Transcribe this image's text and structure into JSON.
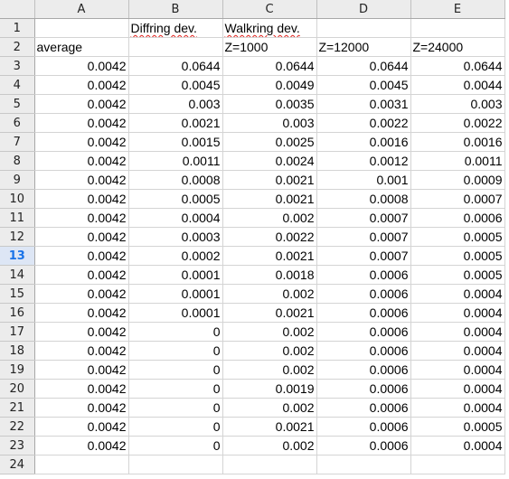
{
  "columns": [
    "A",
    "B",
    "C",
    "D",
    "E"
  ],
  "active_row": "13",
  "rows": [
    {
      "num": "1",
      "cells": [
        "",
        "Diffring dev.",
        "Walkring dev.",
        "",
        ""
      ]
    },
    {
      "num": "2",
      "cells": [
        "average",
        "",
        "Z=1000",
        "Z=12000",
        "Z=24000"
      ]
    },
    {
      "num": "3",
      "cells": [
        "0.0042",
        "0.0644",
        "0.0644",
        "0.0644",
        "0.0644"
      ]
    },
    {
      "num": "4",
      "cells": [
        "0.0042",
        "0.0045",
        "0.0049",
        "0.0045",
        "0.0044"
      ]
    },
    {
      "num": "5",
      "cells": [
        "0.0042",
        "0.003",
        "0.0035",
        "0.0031",
        "0.003"
      ]
    },
    {
      "num": "6",
      "cells": [
        "0.0042",
        "0.0021",
        "0.003",
        "0.0022",
        "0.0022"
      ]
    },
    {
      "num": "7",
      "cells": [
        "0.0042",
        "0.0015",
        "0.0025",
        "0.0016",
        "0.0016"
      ]
    },
    {
      "num": "8",
      "cells": [
        "0.0042",
        "0.0011",
        "0.0024",
        "0.0012",
        "0.0011"
      ]
    },
    {
      "num": "9",
      "cells": [
        "0.0042",
        "0.0008",
        "0.0021",
        "0.001",
        "0.0009"
      ]
    },
    {
      "num": "10",
      "cells": [
        "0.0042",
        "0.0005",
        "0.0021",
        "0.0008",
        "0.0007"
      ]
    },
    {
      "num": "11",
      "cells": [
        "0.0042",
        "0.0004",
        "0.002",
        "0.0007",
        "0.0006"
      ]
    },
    {
      "num": "12",
      "cells": [
        "0.0042",
        "0.0003",
        "0.0022",
        "0.0007",
        "0.0005"
      ]
    },
    {
      "num": "13",
      "cells": [
        "0.0042",
        "0.0002",
        "0.0021",
        "0.0007",
        "0.0005"
      ]
    },
    {
      "num": "14",
      "cells": [
        "0.0042",
        "0.0001",
        "0.0018",
        "0.0006",
        "0.0005"
      ]
    },
    {
      "num": "15",
      "cells": [
        "0.0042",
        "0.0001",
        "0.002",
        "0.0006",
        "0.0004"
      ]
    },
    {
      "num": "16",
      "cells": [
        "0.0042",
        "0.0001",
        "0.0021",
        "0.0006",
        "0.0004"
      ]
    },
    {
      "num": "17",
      "cells": [
        "0.0042",
        "0",
        "0.002",
        "0.0006",
        "0.0004"
      ]
    },
    {
      "num": "18",
      "cells": [
        "0.0042",
        "0",
        "0.002",
        "0.0006",
        "0.0004"
      ]
    },
    {
      "num": "19",
      "cells": [
        "0.0042",
        "0",
        "0.002",
        "0.0006",
        "0.0004"
      ]
    },
    {
      "num": "20",
      "cells": [
        "0.0042",
        "0",
        "0.0019",
        "0.0006",
        "0.0004"
      ]
    },
    {
      "num": "21",
      "cells": [
        "0.0042",
        "0",
        "0.002",
        "0.0006",
        "0.0004"
      ]
    },
    {
      "num": "22",
      "cells": [
        "0.0042",
        "0",
        "0.0021",
        "0.0006",
        "0.0005"
      ]
    },
    {
      "num": "23",
      "cells": [
        "0.0042",
        "0",
        "0.002",
        "0.0006",
        "0.0004"
      ]
    },
    {
      "num": "24",
      "cells": [
        "",
        "",
        "",
        "",
        ""
      ]
    }
  ]
}
